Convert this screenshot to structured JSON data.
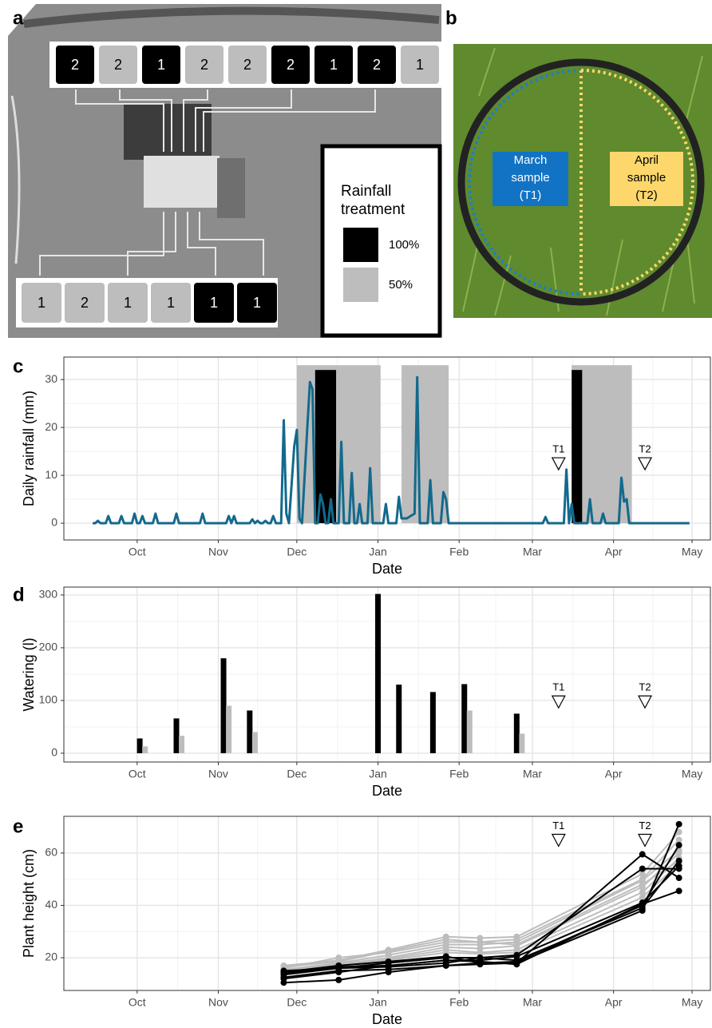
{
  "panel_letters": [
    "a",
    "b",
    "c",
    "d",
    "e"
  ],
  "panel_a": {
    "top_plots": [
      {
        "label": 2,
        "color": "#000000"
      },
      {
        "label": 2,
        "color": "#bdbdbd"
      },
      {
        "label": 1,
        "color": "#000000"
      },
      {
        "label": 2,
        "color": "#bdbdbd"
      },
      {
        "label": 2,
        "color": "#bdbdbd"
      },
      {
        "label": 2,
        "color": "#000000"
      },
      {
        "label": 1,
        "color": "#000000"
      },
      {
        "label": 2,
        "color": "#000000"
      },
      {
        "label": 1,
        "color": "#bdbdbd"
      }
    ],
    "bottom_plots": [
      {
        "label": 1,
        "color": "#bdbdbd"
      },
      {
        "label": 2,
        "color": "#bdbdbd"
      },
      {
        "label": 1,
        "color": "#bdbdbd"
      },
      {
        "label": 1,
        "color": "#bdbdbd"
      },
      {
        "label": 1,
        "color": "#000000"
      },
      {
        "label": 1,
        "color": "#000000"
      }
    ],
    "legend_title": [
      "Rainfall",
      "treatment"
    ],
    "legend": [
      {
        "label": "100%",
        "color": "#000000"
      },
      {
        "label": "50%",
        "color": "#bdbdbd"
      }
    ]
  },
  "panel_b": {
    "labels": [
      {
        "lines": [
          "March",
          "sample",
          "(T1)"
        ],
        "color": "#1273c4"
      },
      {
        "lines": [
          "April",
          "sample",
          "(T2)"
        ],
        "color": "#fdd76b"
      }
    ]
  },
  "chart_data": [
    {
      "type": "line",
      "ylabel": "Daily rainfall (mm)",
      "xlabel": "Date",
      "xlim": [
        -28,
        219
      ],
      "ylim": [
        -3.5,
        34.7
      ],
      "xticks": [
        {
          "value": 0,
          "label": "Oct"
        },
        {
          "value": 31,
          "label": "Nov"
        },
        {
          "value": 61,
          "label": "Dec"
        },
        {
          "value": 92,
          "label": "Jan"
        },
        {
          "value": 123,
          "label": "Feb"
        },
        {
          "value": 151,
          "label": "Mar"
        },
        {
          "value": 182,
          "label": "Apr"
        },
        {
          "value": 212,
          "label": "May"
        }
      ],
      "yticks": [
        0,
        10,
        20,
        30
      ],
      "grid": true,
      "shaded_periods": [
        {
          "start": 61,
          "end": 93,
          "top": 33,
          "color": "#bdbdbd"
        },
        {
          "start": 101,
          "end": 119,
          "top": 33,
          "color": "#bdbdbd"
        },
        {
          "start": 166,
          "end": 189,
          "top": 33,
          "color": "#bdbdbd"
        },
        {
          "start": 68,
          "end": 76,
          "top": 32,
          "color": "#000000"
        },
        {
          "start": 166,
          "end": 170,
          "top": 32,
          "color": "#000000"
        }
      ],
      "series": [
        {
          "color": "#136a8c",
          "x": [
            -17,
            -16,
            -15,
            -14,
            -12,
            -11,
            -10,
            -7,
            -6,
            -5,
            -2,
            -1,
            0,
            1,
            2,
            3,
            6,
            7,
            8,
            14,
            15,
            16,
            24,
            25,
            26,
            34,
            35,
            36,
            37,
            38,
            43,
            44,
            45,
            46,
            47,
            48,
            49,
            50,
            51,
            52,
            53,
            55,
            56,
            57,
            58,
            60,
            61,
            62,
            63,
            65,
            66,
            67,
            68,
            69,
            70,
            71,
            72,
            73,
            74,
            75,
            77,
            78,
            79,
            81,
            82,
            83,
            84,
            85,
            86,
            88,
            89,
            90,
            94,
            95,
            96,
            99,
            100,
            101,
            103,
            106,
            107,
            108,
            111,
            112,
            113,
            116,
            117,
            118,
            119,
            155,
            156,
            157,
            163,
            164,
            165,
            166,
            167,
            172,
            173,
            174,
            177,
            178,
            179,
            184,
            185,
            186,
            187,
            188,
            211
          ],
          "values": [
            0,
            0,
            0.5,
            0,
            0,
            1.5,
            0,
            0,
            1.5,
            0,
            0,
            2,
            0,
            0,
            1.5,
            0,
            0,
            2,
            0,
            0,
            2,
            0,
            0,
            2,
            0,
            0,
            1.5,
            0,
            1.5,
            0,
            0,
            0.8,
            0,
            0.5,
            0,
            0,
            0.5,
            0,
            0,
            1.5,
            0,
            0,
            21.5,
            2,
            0,
            16,
            19.5,
            1,
            0,
            20,
            29.5,
            28,
            0,
            0,
            6,
            4,
            0,
            0,
            5,
            0,
            0,
            17,
            0,
            0,
            10.5,
            0,
            0,
            4,
            0,
            0,
            11.5,
            0,
            0,
            4,
            0,
            0,
            5.5,
            1,
            1,
            2,
            30.5,
            0,
            0,
            9,
            0,
            0,
            6.5,
            5,
            0,
            0,
            1.3,
            0,
            0,
            11.2,
            0,
            4,
            0,
            0,
            5,
            0,
            0,
            2,
            0,
            0,
            9.5,
            4.5,
            5,
            0,
            0
          ]
        }
      ],
      "annotations": [
        {
          "text": "T1",
          "x": 161,
          "y": 12.5
        },
        {
          "text": "T2",
          "x": 194,
          "y": 12.5
        }
      ]
    },
    {
      "type": "bar",
      "ylabel": "Watering (l)",
      "xlabel": "Date",
      "xlim": [
        -28,
        219
      ],
      "ylim": [
        -16.7,
        315
      ],
      "xticks": [
        {
          "value": 0,
          "label": "Oct"
        },
        {
          "value": 31,
          "label": "Nov"
        },
        {
          "value": 61,
          "label": "Dec"
        },
        {
          "value": 92,
          "label": "Jan"
        },
        {
          "value": 123,
          "label": "Feb"
        },
        {
          "value": 151,
          "label": "Mar"
        },
        {
          "value": 182,
          "label": "Apr"
        },
        {
          "value": 212,
          "label": "May"
        }
      ],
      "yticks": [
        0,
        100,
        200,
        300
      ],
      "grid": true,
      "series": [
        {
          "color": "#000000",
          "x": [
            1,
            15,
            33,
            43,
            92,
            100,
            113,
            125,
            145
          ],
          "values": [
            28,
            66,
            180,
            81,
            302,
            130,
            116,
            131,
            75
          ]
        },
        {
          "color": "#bdbdbd",
          "x": [
            3,
            17,
            35,
            45,
            127,
            147
          ],
          "values": [
            13,
            33,
            90,
            40,
            81,
            37
          ]
        }
      ],
      "annotations": [
        {
          "text": "T1",
          "x": 161,
          "y": 98
        },
        {
          "text": "T2",
          "x": 194,
          "y": 98
        }
      ]
    },
    {
      "type": "line",
      "markers": true,
      "ylabel": "Plant height (cm)",
      "xlabel": "Date",
      "xlim": [
        -28,
        219
      ],
      "ylim": [
        7.5,
        74
      ],
      "xticks": [
        {
          "value": 0,
          "label": "Oct"
        },
        {
          "value": 31,
          "label": "Nov"
        },
        {
          "value": 61,
          "label": "Dec"
        },
        {
          "value": 92,
          "label": "Jan"
        },
        {
          "value": 123,
          "label": "Feb"
        },
        {
          "value": 151,
          "label": "Mar"
        },
        {
          "value": 182,
          "label": "Apr"
        },
        {
          "value": 212,
          "label": "May"
        }
      ],
      "yticks": [
        20,
        40,
        60
      ],
      "grid": true,
      "series": [
        {
          "color": "#bdbdbd",
          "x": [
            56,
            77,
            96,
            118,
            131,
            145,
            193,
            207
          ],
          "values": [
            17,
            19,
            23,
            28,
            27.5,
            28,
            52,
            68
          ]
        },
        {
          "color": "#bdbdbd",
          "x": [
            56,
            77,
            96,
            118,
            131,
            145,
            193,
            207
          ],
          "values": [
            16,
            20,
            22,
            26,
            26,
            27,
            50,
            65
          ]
        },
        {
          "color": "#bdbdbd",
          "x": [
            56,
            77,
            96,
            118,
            131,
            145,
            193,
            207
          ],
          "values": [
            15.5,
            18,
            21,
            25,
            25,
            26,
            49.5,
            61
          ]
        },
        {
          "color": "#bdbdbd",
          "x": [
            56,
            77,
            96,
            118,
            131,
            145,
            193,
            207
          ],
          "values": [
            15,
            17.5,
            20,
            24,
            23.5,
            24.5,
            47,
            60
          ]
        },
        {
          "color": "#bdbdbd",
          "x": [
            56,
            77,
            96,
            118,
            131,
            145,
            193,
            207
          ],
          "values": [
            14.5,
            17,
            19.5,
            23,
            22,
            23,
            45,
            58
          ]
        },
        {
          "color": "#bdbdbd",
          "x": [
            56,
            77,
            96,
            118,
            131,
            145,
            193,
            207
          ],
          "values": [
            16.5,
            18.5,
            22.5,
            27,
            26,
            25,
            48,
            57
          ]
        },
        {
          "color": "#bdbdbd",
          "x": [
            56,
            77,
            96,
            118,
            131,
            145,
            193,
            207
          ],
          "values": [
            15,
            16,
            19,
            22,
            21.5,
            22,
            43,
            56
          ]
        },
        {
          "color": "#000000",
          "x": [
            56,
            77,
            96,
            118,
            131,
            145,
            193,
            207
          ],
          "values": [
            10.5,
            11.5,
            14.5,
            17,
            17.5,
            18,
            38,
            71
          ]
        },
        {
          "color": "#000000",
          "x": [
            56,
            77,
            96,
            118,
            131,
            145,
            193,
            207
          ],
          "values": [
            12.5,
            15,
            15.5,
            17,
            18,
            18.5,
            40,
            63
          ]
        },
        {
          "color": "#000000",
          "x": [
            56,
            77,
            96,
            118,
            131,
            145,
            193,
            207
          ],
          "values": [
            13.5,
            16,
            16.5,
            18,
            20,
            19,
            39,
            57
          ]
        },
        {
          "color": "#000000",
          "x": [
            56,
            77,
            96,
            118,
            131,
            145,
            193,
            207
          ],
          "values": [
            14,
            16.5,
            17,
            19,
            19,
            20.5,
            41,
            55
          ]
        },
        {
          "color": "#000000",
          "x": [
            56,
            77,
            96,
            118,
            131,
            145,
            193,
            207
          ],
          "values": [
            15,
            16,
            18,
            20,
            20,
            21,
            54,
            54
          ]
        },
        {
          "color": "#000000",
          "x": [
            56,
            77,
            96,
            118,
            131,
            145,
            193,
            207
          ],
          "values": [
            14.5,
            17,
            18.5,
            20.5,
            18,
            18,
            59.5,
            50.5
          ]
        },
        {
          "color": "#000000",
          "x": [
            56,
            77,
            96,
            118,
            131,
            145,
            193,
            207
          ],
          "values": [
            12,
            14.5,
            17,
            19,
            18.5,
            17.5,
            40.5,
            45.5
          ]
        }
      ],
      "annotations": [
        {
          "text": "T1",
          "x": 161,
          "y": 65
        },
        {
          "text": "T2",
          "x": 194,
          "y": 65
        }
      ]
    }
  ]
}
